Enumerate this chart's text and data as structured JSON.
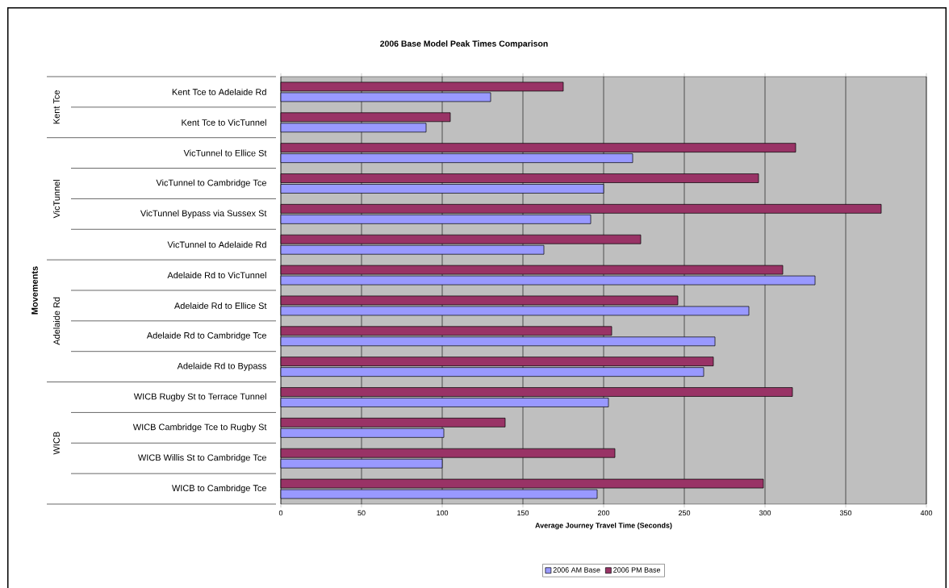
{
  "chart_data": {
    "type": "bar",
    "orientation": "horizontal",
    "title": "2006 Base Model Peak Times Comparison",
    "xlabel": "Average Journey Travel Time (Seconds)",
    "annotations": [
      "Kent Tce",
      "VicTunnel",
      "Adelaide Rd",
      "WICB",
      "Movements"
    ],
    "categories": [
      "Kent Tce to Adelaide Rd",
      "Kent Tce to VicTunnel",
      "VicTunnel to Ellice St",
      "VicTunnel to Cambridge Tce",
      "VicTunnel Bypass via Sussex St",
      "VicTunnel to Adelaide Rd",
      "Adelaide Rd to VicTunnel",
      "Adelaide Rd to Ellice St",
      "Adelaide Rd to Cambridge Tce",
      "Adelaide Rd to Bypass",
      "WICB Rugby St to Terrace Tunnel",
      "WICB Cambridge Tce to Rugby St",
      "WICB Willis St to Cambridge Tce",
      "WICB to Cambridge Tce"
    ],
    "series": [
      {
        "name": "2006 AM Base",
        "color": "#9999ff",
        "values": [
          130,
          90,
          218,
          200,
          192,
          163,
          331,
          290,
          269,
          262,
          203,
          101,
          100,
          196
        ]
      },
      {
        "name": "2006 PM Base",
        "color": "#993366",
        "values": [
          175,
          105,
          319,
          296,
          372,
          223,
          311,
          246,
          205,
          268,
          317,
          139,
          207,
          299
        ]
      }
    ],
    "xlim": [
      0,
      400
    ],
    "xticks": [
      0,
      50,
      100,
      150,
      200,
      250,
      300,
      350,
      400
    ],
    "grid": "x",
    "legend": "bottom"
  }
}
